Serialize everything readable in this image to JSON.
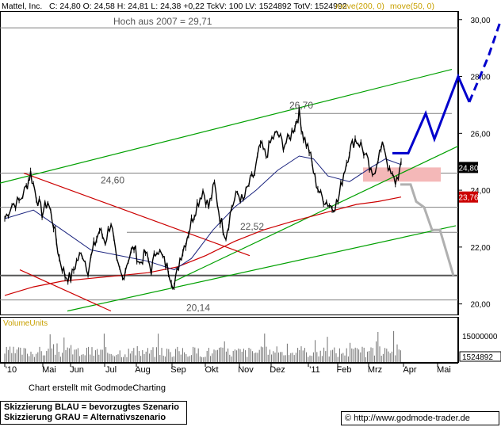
{
  "header": {
    "symbol": "Mattel, Inc.",
    "quote": "C: 24,80  O: 24,58  H: 24,81  L: 24,38  +0,22  TckV: 100  LV: 1524892  TotV: 1524992",
    "ma200_label": "move(200, 0)",
    "ma50_label": "move(50, 0)"
  },
  "colors": {
    "price": "#000000",
    "ma200": "#cc0000",
    "ma50": "#1a237e",
    "trend": "#00a000",
    "resistance_line": "#cc0000",
    "scenario_blue": "#0000cc",
    "scenario_grey": "#b0b0b0",
    "zone": "#f4b8b8"
  },
  "chart_data": {
    "type": "line",
    "title": "",
    "xlabel": "",
    "ylabel": "",
    "ylim": [
      19.6,
      30.3
    ],
    "y_ticks": [
      20,
      22,
      24,
      26,
      28,
      30
    ],
    "y_tick_labels": [
      "20,00",
      "22,00",
      "24,00",
      "26,00",
      "28,00",
      "30,00"
    ],
    "x_tick_labels": [
      "'10",
      "Mai",
      "Jun",
      "Jul",
      "Aug",
      "Sep",
      "Okt",
      "Nov",
      "Dez",
      "'11",
      "Feb",
      "Mrz",
      "Apr",
      "Mai"
    ],
    "price_series": [
      {
        "x": 0,
        "y": 23.0
      },
      {
        "x": 5,
        "y": 23.5
      },
      {
        "x": 10,
        "y": 23.6
      },
      {
        "x": 15,
        "y": 24.1
      },
      {
        "x": 18,
        "y": 24.6
      },
      {
        "x": 22,
        "y": 23.8
      },
      {
        "x": 26,
        "y": 23.2
      },
      {
        "x": 30,
        "y": 23.6
      },
      {
        "x": 34,
        "y": 22.8
      },
      {
        "x": 38,
        "y": 21.6
      },
      {
        "x": 42,
        "y": 21.0
      },
      {
        "x": 46,
        "y": 20.9
      },
      {
        "x": 50,
        "y": 21.5
      },
      {
        "x": 54,
        "y": 21.8
      },
      {
        "x": 58,
        "y": 21.2
      },
      {
        "x": 62,
        "y": 22.0
      },
      {
        "x": 66,
        "y": 22.6
      },
      {
        "x": 70,
        "y": 22.2
      },
      {
        "x": 74,
        "y": 22.9
      },
      {
        "x": 78,
        "y": 21.4
      },
      {
        "x": 82,
        "y": 20.9
      },
      {
        "x": 86,
        "y": 21.6
      },
      {
        "x": 90,
        "y": 22.0
      },
      {
        "x": 94,
        "y": 21.4
      },
      {
        "x": 98,
        "y": 21.8
      },
      {
        "x": 102,
        "y": 21.2
      },
      {
        "x": 106,
        "y": 22.0
      },
      {
        "x": 110,
        "y": 21.6
      },
      {
        "x": 114,
        "y": 21.2
      },
      {
        "x": 118,
        "y": 20.6
      },
      {
        "x": 122,
        "y": 21.6
      },
      {
        "x": 126,
        "y": 22.2
      },
      {
        "x": 130,
        "y": 22.9
      },
      {
        "x": 134,
        "y": 23.5
      },
      {
        "x": 138,
        "y": 24.0
      },
      {
        "x": 142,
        "y": 23.4
      },
      {
        "x": 146,
        "y": 24.2
      },
      {
        "x": 150,
        "y": 23.0
      },
      {
        "x": 154,
        "y": 22.4
      },
      {
        "x": 158,
        "y": 23.4
      },
      {
        "x": 162,
        "y": 23.9
      },
      {
        "x": 166,
        "y": 23.6
      },
      {
        "x": 170,
        "y": 24.2
      },
      {
        "x": 174,
        "y": 24.6
      },
      {
        "x": 178,
        "y": 25.6
      },
      {
        "x": 182,
        "y": 25.2
      },
      {
        "x": 186,
        "y": 25.8
      },
      {
        "x": 190,
        "y": 26.0
      },
      {
        "x": 194,
        "y": 25.6
      },
      {
        "x": 198,
        "y": 25.8
      },
      {
        "x": 202,
        "y": 26.3
      },
      {
        "x": 205,
        "y": 26.7
      },
      {
        "x": 208,
        "y": 25.9
      },
      {
        "x": 212,
        "y": 25.4
      },
      {
        "x": 216,
        "y": 24.4
      },
      {
        "x": 220,
        "y": 23.8
      },
      {
        "x": 224,
        "y": 23.6
      },
      {
        "x": 228,
        "y": 23.4
      },
      {
        "x": 232,
        "y": 23.6
      },
      {
        "x": 236,
        "y": 24.6
      },
      {
        "x": 240,
        "y": 25.4
      },
      {
        "x": 244,
        "y": 25.8
      },
      {
        "x": 248,
        "y": 25.6
      },
      {
        "x": 252,
        "y": 25.1
      },
      {
        "x": 256,
        "y": 24.4
      },
      {
        "x": 260,
        "y": 25.2
      },
      {
        "x": 264,
        "y": 25.6
      },
      {
        "x": 268,
        "y": 24.6
      },
      {
        "x": 272,
        "y": 24.3
      },
      {
        "x": 276,
        "y": 24.8
      }
    ],
    "ma50": [
      {
        "x": 0,
        "y": 23.0
      },
      {
        "x": 20,
        "y": 23.3
      },
      {
        "x": 40,
        "y": 22.6
      },
      {
        "x": 60,
        "y": 21.9
      },
      {
        "x": 80,
        "y": 21.7
      },
      {
        "x": 100,
        "y": 21.5
      },
      {
        "x": 118,
        "y": 21.2
      },
      {
        "x": 130,
        "y": 21.6
      },
      {
        "x": 145,
        "y": 22.6
      },
      {
        "x": 160,
        "y": 23.4
      },
      {
        "x": 175,
        "y": 24.0
      },
      {
        "x": 190,
        "y": 24.7
      },
      {
        "x": 205,
        "y": 25.2
      },
      {
        "x": 215,
        "y": 25.1
      },
      {
        "x": 225,
        "y": 24.5
      },
      {
        "x": 240,
        "y": 24.3
      },
      {
        "x": 255,
        "y": 24.8
      },
      {
        "x": 265,
        "y": 25.1
      },
      {
        "x": 276,
        "y": 24.9
      }
    ],
    "ma200": [
      {
        "x": 0,
        "y": 20.3
      },
      {
        "x": 20,
        "y": 20.6
      },
      {
        "x": 40,
        "y": 20.8
      },
      {
        "x": 60,
        "y": 20.9
      },
      {
        "x": 80,
        "y": 21.0
      },
      {
        "x": 100,
        "y": 21.1
      },
      {
        "x": 120,
        "y": 21.3
      },
      {
        "x": 140,
        "y": 21.7
      },
      {
        "x": 160,
        "y": 22.2
      },
      {
        "x": 180,
        "y": 22.6
      },
      {
        "x": 200,
        "y": 22.9
      },
      {
        "x": 215,
        "y": 23.1
      },
      {
        "x": 230,
        "y": 23.3
      },
      {
        "x": 245,
        "y": 23.5
      },
      {
        "x": 260,
        "y": 23.6
      },
      {
        "x": 276,
        "y": 23.76
      }
    ],
    "price_labels": [
      {
        "key": "close",
        "text": "24,80",
        "y": 24.8
      },
      {
        "key": "ma200",
        "text": "23,76",
        "y": 23.76
      }
    ],
    "annotations": [
      {
        "key": "high_2007",
        "text": "Hoch aus 2007  =  29,71",
        "y": 29.71
      },
      {
        "key": "high_26_70",
        "text": "26,70",
        "y": 26.7
      },
      {
        "key": "level_24_60",
        "text": "24,60",
        "y": 24.6
      },
      {
        "key": "level_22_52",
        "text": "22,52",
        "y": 22.52
      },
      {
        "key": "level_20_14",
        "text": "20,14",
        "y": 20.14
      }
    ],
    "volume": {
      "label": "VolumeUnits",
      "tick_label": "15000000",
      "current": "1524892"
    }
  },
  "footer": {
    "credit": "Chart erstellt mit GodmodeCharting",
    "legend_blue": "Skizzierung BLAU = bevorzugtes Szenario",
    "legend_grey": "Skizzierung GRAU = Alternativszenario",
    "url": "http://www.godmode-trader.de",
    "url_icon": "copyright-icon"
  }
}
